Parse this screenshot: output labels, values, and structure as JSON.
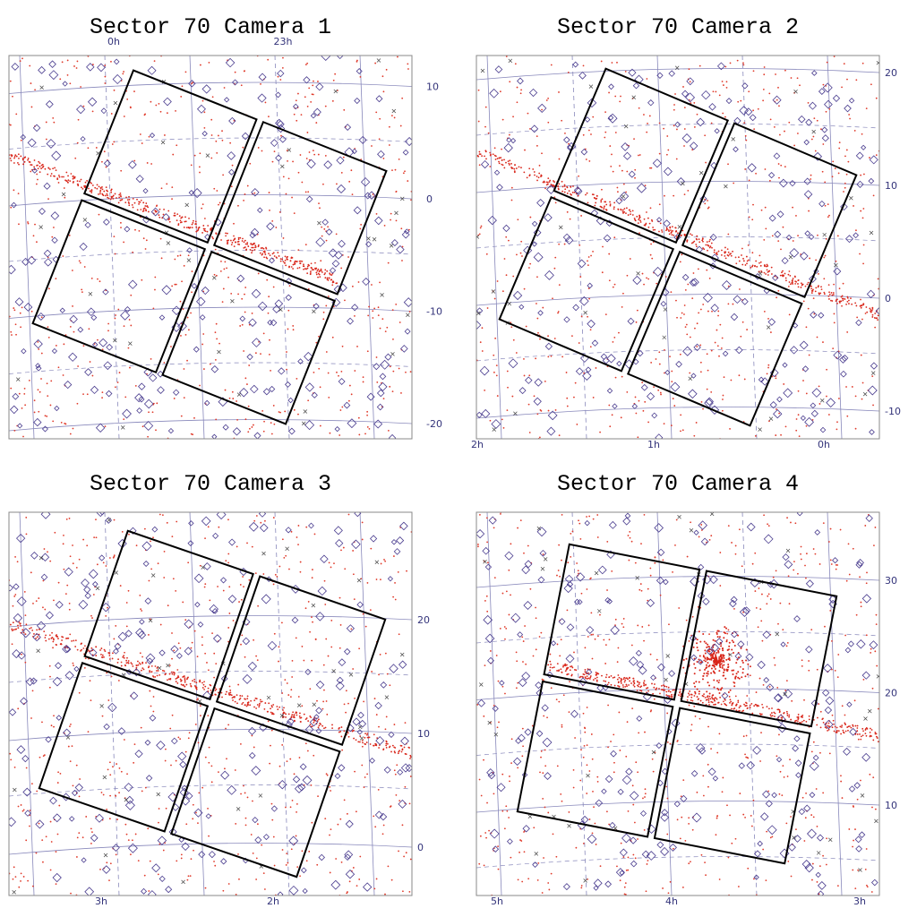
{
  "panels": [
    {
      "title": "Sector 70 Camera 1",
      "ra_labels": [
        "0h",
        "23h"
      ],
      "dec_labels": [
        10,
        0,
        -10,
        -20
      ]
    },
    {
      "title": "Sector 70 Camera 2",
      "ra_labels": [
        "2h",
        "1h",
        "0h"
      ],
      "dec_labels": [
        20,
        10,
        0,
        -10
      ]
    },
    {
      "title": "Sector 70 Camera 3",
      "ra_labels": [
        "3h",
        "2h"
      ],
      "dec_labels": [
        20,
        10,
        0
      ]
    },
    {
      "title": "Sector 70 Camera 4",
      "ra_labels": [
        "5h",
        "4h",
        "3h"
      ],
      "dec_labels": [
        30,
        20,
        10
      ]
    }
  ]
}
